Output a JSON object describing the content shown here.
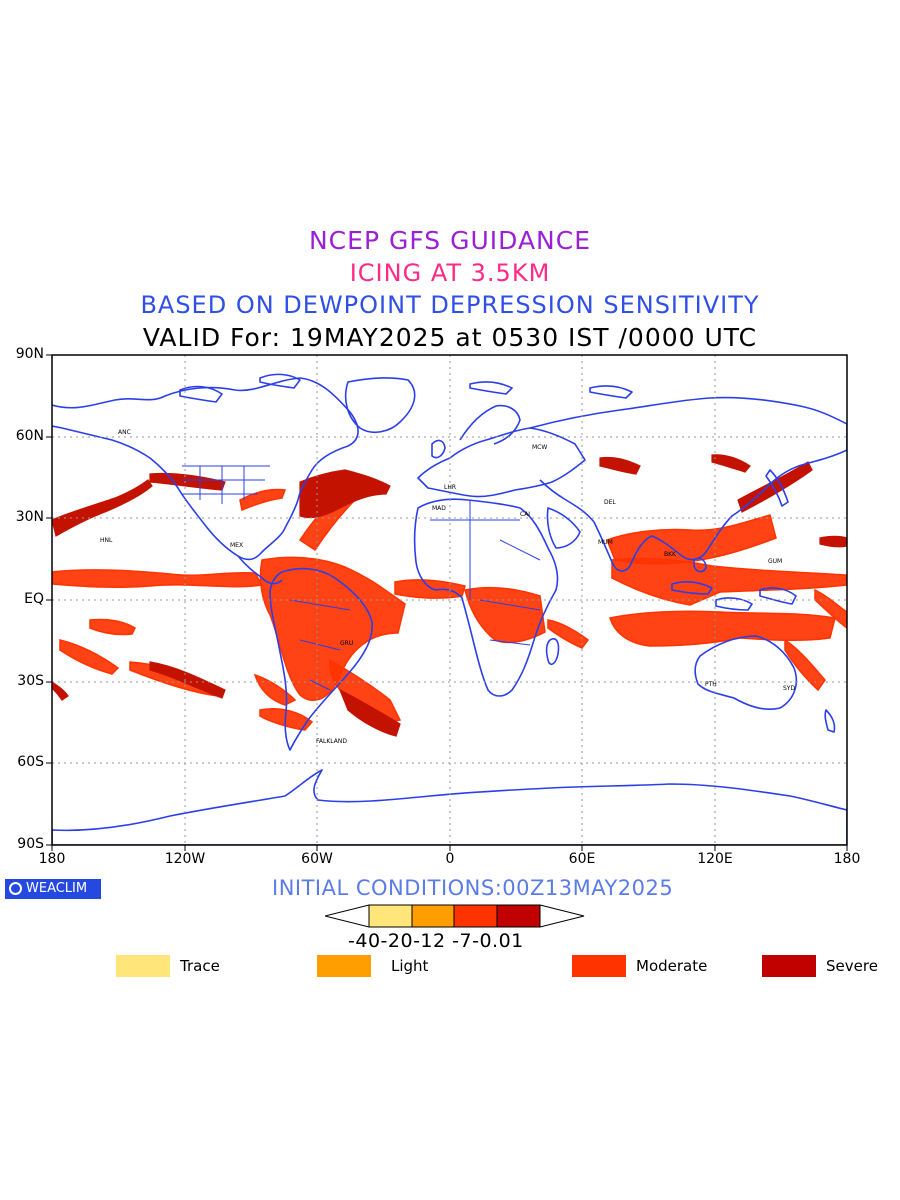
{
  "titles": {
    "line1": "NCEP GFS GUIDANCE",
    "line2": "ICING AT 3.5KM",
    "line3": "BASED ON DEWPOINT DEPRESSION SENSITIVITY",
    "line4": "VALID For: 19MAY2025 at 0530 IST /0000 UTC"
  },
  "lat_ticks": [
    "90N",
    "60N",
    "30N",
    "EQ",
    "30S",
    "60S",
    "90S"
  ],
  "lon_ticks": [
    "180",
    "120W",
    "60W",
    "0",
    "60E",
    "120E",
    "180"
  ],
  "brand": "WEACLIM",
  "initial_conditions": "INITIAL CONDITIONS:00Z13MAY2025",
  "colorbar": {
    "labels": "-40-20-12 -7-0.01",
    "colors": [
      "#ffe57a",
      "#ff9e00",
      "#ff3300",
      "#c10000"
    ]
  },
  "legend": [
    {
      "label": "Trace",
      "color": "#ffe57a"
    },
    {
      "label": "Light",
      "color": "#ff9e00"
    },
    {
      "label": "Moderate",
      "color": "#ff3300"
    },
    {
      "label": "Severe",
      "color": "#c10000"
    }
  ],
  "colors": {
    "coastline": "#2b3fe8",
    "moderate_fill": "#ff3300",
    "severe_fill": "#c41200"
  },
  "city_labels": [
    "ANC",
    "MCW",
    "LHR",
    "MAD",
    "CAI",
    "MUM",
    "DEL",
    "BKK",
    "PTH",
    "SYD",
    "FALKLAND",
    "GUM",
    "HNL",
    "MEX",
    "GRU"
  ]
}
